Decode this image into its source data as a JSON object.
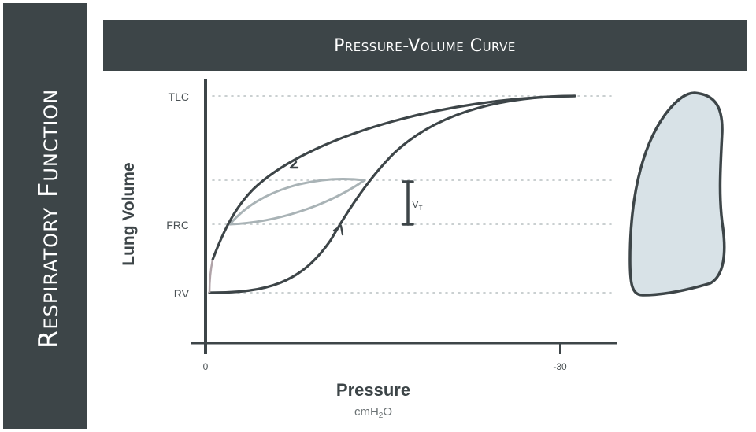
{
  "sidebar": {
    "title": "Respiratory Function"
  },
  "header": {
    "title": "Pressure-Volume Curve"
  },
  "diagram": {
    "y_labels": {
      "tlc": "TLC",
      "frc": "FRC",
      "rv": "RV"
    },
    "x_ticks": {
      "start": "0",
      "end": "-30"
    },
    "y_axis_label": "Lung Volume",
    "x_axis_label": "Pressure",
    "x_unit_main": "cmH",
    "x_unit_sub": "2",
    "x_unit_tail": "O",
    "tidal_label_main": "V",
    "tidal_label_sub": "T"
  },
  "colors": {
    "panel": "#3d4548",
    "curve": "#3d4548",
    "tidal_loop": "#a9b3b6",
    "lung_fill": "#d8e2e7",
    "gridline": "#b9c0c2"
  }
}
